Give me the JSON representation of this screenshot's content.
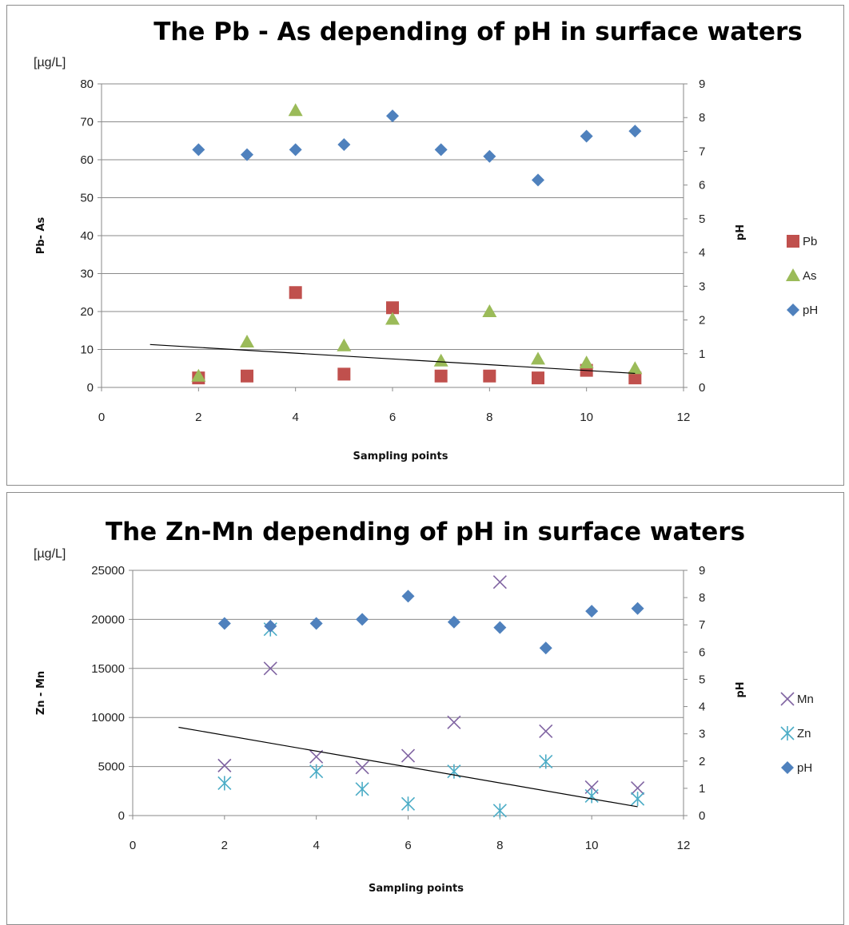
{
  "chart_data": [
    {
      "type": "scatter",
      "title": "The Pb - As depending of  pH in surface waters",
      "unit_label": "[µg/L]",
      "xlabel": "Sampling points",
      "ylabel": "Pb- As",
      "y2label": "pH",
      "xlim": [
        0,
        12
      ],
      "xticks": [
        0,
        2,
        4,
        6,
        8,
        10,
        12
      ],
      "ylim": [
        0,
        80
      ],
      "yticks": [
        0,
        10,
        20,
        30,
        40,
        50,
        60,
        70,
        80
      ],
      "y2lim": [
        0,
        9
      ],
      "y2ticks": [
        0,
        1,
        2,
        3,
        4,
        5,
        6,
        7,
        8,
        9
      ],
      "grid": true,
      "legend_position": "right",
      "series": [
        {
          "name": "Pb",
          "axis": "left",
          "marker": "square",
          "color": "#c0504d",
          "x": [
            2,
            3,
            4,
            5,
            6,
            7,
            8,
            9,
            10,
            11
          ],
          "y": [
            2.5,
            3,
            25,
            3.5,
            21,
            3,
            3,
            2.5,
            4.5,
            2.5
          ]
        },
        {
          "name": "As",
          "axis": "left",
          "marker": "triangle",
          "color": "#9bbb59",
          "x": [
            2,
            3,
            4,
            5,
            6,
            7,
            8,
            9,
            10,
            11
          ],
          "y": [
            3,
            12,
            73,
            11,
            18,
            7,
            20,
            7.5,
            6.5,
            5
          ]
        },
        {
          "name": "pH",
          "axis": "right",
          "marker": "diamond",
          "color": "#4f81bd",
          "x": [
            2,
            3,
            4,
            5,
            6,
            7,
            8,
            9,
            10,
            11
          ],
          "y": [
            7.05,
            6.9,
            7.05,
            7.2,
            8.05,
            7.05,
            6.85,
            6.15,
            7.45,
            7.6
          ]
        }
      ],
      "trendline": {
        "color": "#000000",
        "x": [
          1,
          11
        ],
        "y": [
          11.3,
          3.7
        ]
      }
    },
    {
      "type": "scatter",
      "title": "The Zn-Mn depending of  pH in surface waters",
      "unit_label": "[µg/L]",
      "xlabel": "Sampling points",
      "ylabel": "Zn - Mn",
      "y2label": "pH",
      "xlim": [
        0,
        12
      ],
      "xticks": [
        0,
        2,
        4,
        6,
        8,
        10,
        12
      ],
      "ylim": [
        0,
        25000
      ],
      "yticks": [
        0,
        5000,
        10000,
        15000,
        20000,
        25000
      ],
      "y2lim": [
        0,
        9
      ],
      "y2ticks": [
        0,
        1,
        2,
        3,
        4,
        5,
        6,
        7,
        8,
        9
      ],
      "grid": true,
      "legend_position": "right",
      "series": [
        {
          "name": "Mn",
          "axis": "left",
          "marker": "x",
          "color": "#8064a2",
          "x": [
            2,
            3,
            4,
            5,
            6,
            7,
            8,
            9,
            10,
            11
          ],
          "y": [
            5100,
            15000,
            6000,
            4900,
            6100,
            9500,
            23800,
            8600,
            2900,
            2800
          ]
        },
        {
          "name": "Zn",
          "axis": "left",
          "marker": "asterisk",
          "color": "#4bacc6",
          "x": [
            2,
            3,
            4,
            5,
            6,
            7,
            8,
            9,
            10,
            11
          ],
          "y": [
            3300,
            19000,
            4500,
            2700,
            1200,
            4500,
            500,
            5500,
            2000,
            1700
          ]
        },
        {
          "name": "pH",
          "axis": "right",
          "marker": "diamond",
          "color": "#4f81bd",
          "x": [
            2,
            3,
            4,
            5,
            6,
            7,
            8,
            9,
            10,
            11
          ],
          "y": [
            7.05,
            6.95,
            7.05,
            7.2,
            8.05,
            7.1,
            6.9,
            6.15,
            7.5,
            7.6
          ]
        }
      ],
      "trendline": {
        "color": "#000000",
        "x": [
          1,
          11
        ],
        "y": [
          9000,
          900
        ]
      }
    }
  ]
}
